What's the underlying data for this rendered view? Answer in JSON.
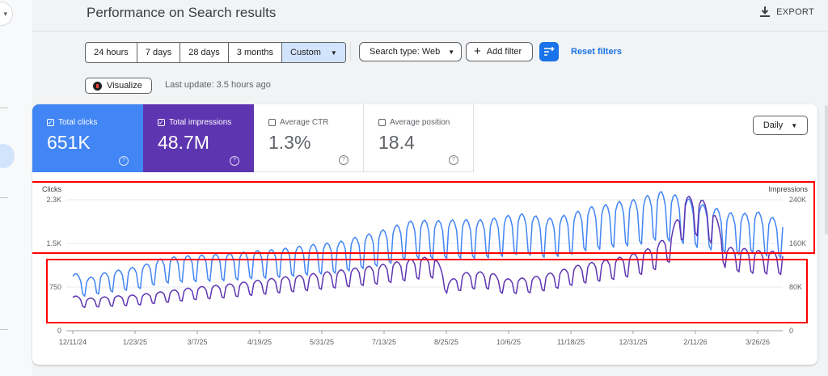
{
  "page": {
    "title": "Performance on Search results",
    "export_label": "EXPORT",
    "last_update": "Last update: 3.5 hours ago",
    "visualize_label": "Visualize"
  },
  "date_ranges": [
    "24 hours",
    "7 days",
    "28 days",
    "3 months",
    "Custom"
  ],
  "selected_range": "Custom",
  "filters": {
    "search_type": "Search type: Web",
    "add_filter": "Add filter",
    "reset": "Reset filters"
  },
  "metrics": [
    {
      "label": "Total clicks",
      "value": "651K",
      "checked": true,
      "color": "#4285f4"
    },
    {
      "label": "Total impressions",
      "value": "48.7M",
      "checked": true,
      "color": "#5e35b1"
    },
    {
      "label": "Average CTR",
      "value": "1.3%",
      "checked": false
    },
    {
      "label": "Average position",
      "value": "18.4",
      "checked": false
    }
  ],
  "granularity": "Daily",
  "chart_data": {
    "type": "line",
    "left_axis": {
      "label": "Clicks",
      "ticks": [
        "2.3K",
        "1.5K",
        "750",
        "0"
      ],
      "range": [
        0,
        2300
      ]
    },
    "right_axis": {
      "label": "Impressions",
      "ticks": [
        "240K",
        "160K",
        "80K",
        "0"
      ],
      "range": [
        0,
        240000
      ]
    },
    "x_ticks": [
      "12/11/24",
      "1/23/25",
      "3/7/25",
      "4/19/25",
      "5/31/25",
      "7/13/25",
      "8/25/25",
      "10/6/25",
      "11/18/25",
      "12/31/25",
      "2/11/26",
      "3/26/26"
    ],
    "series": [
      {
        "name": "Clicks",
        "axis": "left",
        "color": "#4285f4",
        "values_weekly": [
          900,
          800,
          880,
          920,
          960,
          1000,
          1090,
          1130,
          1150,
          1160,
          1170,
          1180,
          1200,
          1230,
          1240,
          1260,
          1290,
          1320,
          1340,
          1360,
          1420,
          1470,
          1530,
          1600,
          1680,
          1700,
          1690,
          1700,
          1710,
          1700,
          1720,
          1760,
          1800,
          1780,
          1720,
          1760,
          1810,
          1900,
          1920,
          1980,
          2000,
          2050,
          2150,
          2100,
          2050,
          1950,
          1900,
          1820,
          1790,
          1850,
          1750,
          1710
        ]
      },
      {
        "name": "Impressions",
        "axis": "right",
        "color": "#5e35b1",
        "values_weekly": [
          58000,
          53000,
          55000,
          57000,
          58000,
          60000,
          63000,
          66000,
          69000,
          72000,
          74000,
          76000,
          79000,
          82000,
          85000,
          88000,
          90000,
          93000,
          96000,
          99000,
          102000,
          105000,
          108000,
          112000,
          116000,
          120000,
          122000,
          81000,
          95000,
          97000,
          96000,
          85000,
          86000,
          88000,
          93000,
          99000,
          106000,
          111000,
          115000,
          119000,
          125000,
          131000,
          143000,
          161000,
          221000,
          219000,
          200000,
          137000,
          136000,
          132000,
          131000,
          130000
        ]
      }
    ]
  }
}
